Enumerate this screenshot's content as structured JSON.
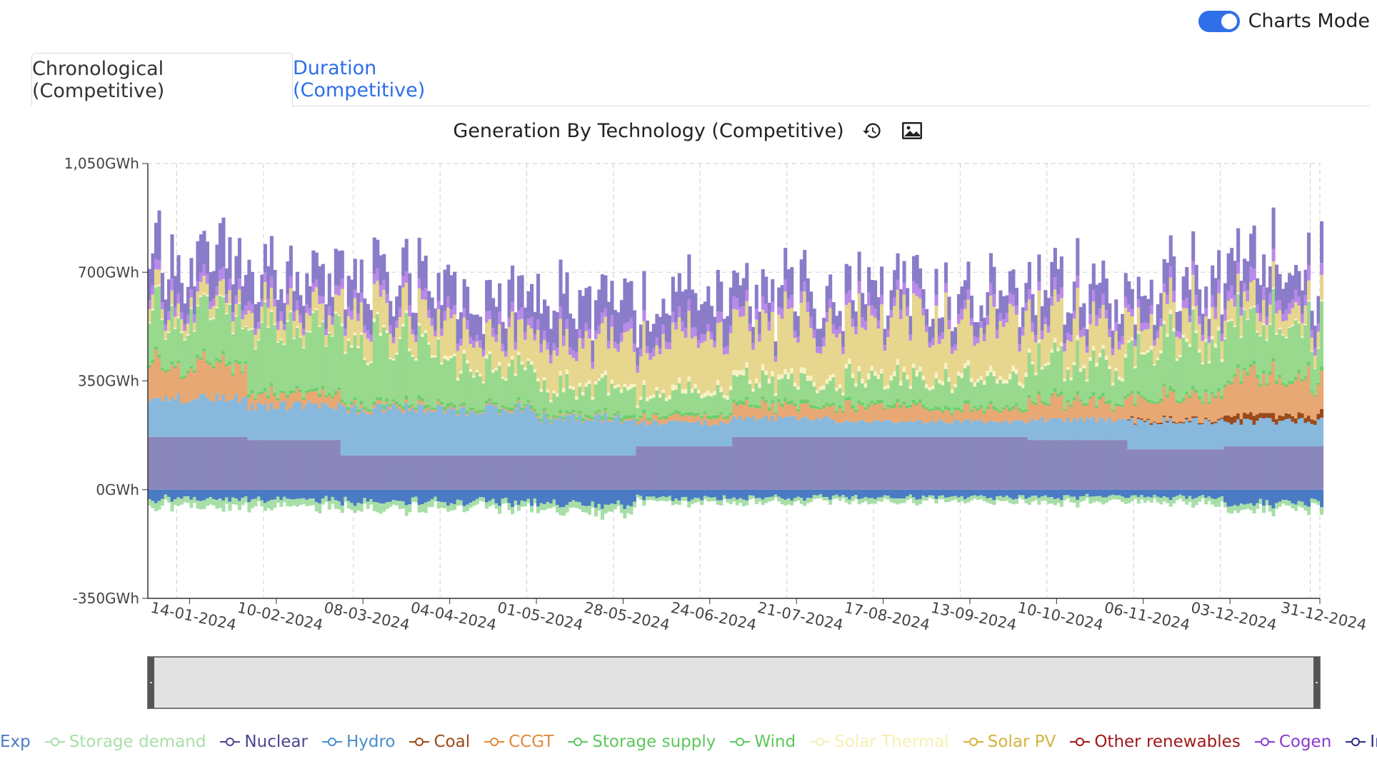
{
  "header": {
    "toggle_label": "Charts Mode",
    "toggle_on": true,
    "accent": "#2f6fe8"
  },
  "tabs": [
    {
      "label": "Chronological (Competitive)",
      "active": true
    },
    {
      "label": "Duration (Competitive)",
      "active": false
    }
  ],
  "icons": {
    "reset": "history-icon",
    "export": "image-icon"
  },
  "chart_data": {
    "type": "area",
    "title": "Generation By Technology (Competitive)",
    "xlabel": "",
    "ylabel": "",
    "y_unit": "GWh",
    "ylim": [
      -350,
      1050
    ],
    "y_ticks": [
      "1,050GWh",
      "700GWh",
      "350GWh",
      "0GWh",
      "-350GWh"
    ],
    "y_tick_values": [
      1050,
      700,
      350,
      0,
      -350
    ],
    "x_range": [
      "2024-01-01",
      "2024-12-31"
    ],
    "x_ticks": [
      "14-01-2024",
      "10-02-2024",
      "08-03-2024",
      "04-04-2024",
      "01-05-2024",
      "28-05-2024",
      "24-06-2024",
      "21-07-2024",
      "17-08-2024",
      "13-09-2024",
      "10-10-2024",
      "06-11-2024",
      "03-12-2024",
      "31-12-2024"
    ],
    "x_tick_values": [
      "2024-01-14",
      "2024-02-10",
      "2024-03-08",
      "2024-04-04",
      "2024-05-01",
      "2024-05-28",
      "2024-06-24",
      "2024-07-21",
      "2024-08-17",
      "2024-09-13",
      "2024-10-10",
      "2024-11-06",
      "2024-12-03",
      "2024-12-31"
    ],
    "grid": true,
    "stacked": true,
    "series_description": "Daily stacked generation; approximate monthly levels (GWh per day) read from the chart",
    "months": [
      "2024-01",
      "2024-02",
      "2024-03",
      "2024-04",
      "2024-05",
      "2024-06",
      "2024-07",
      "2024-08",
      "2024-09",
      "2024-10",
      "2024-11",
      "2024-12"
    ],
    "series": [
      {
        "name": "Exp",
        "color": "#4a7bc4",
        "values": [
          -30,
          -35,
          -40,
          -40,
          -50,
          -30,
          -25,
          -25,
          -25,
          -25,
          -25,
          -45
        ]
      },
      {
        "name": "Storage demand",
        "color": "#a8dfa8",
        "values": [
          -25,
          -25,
          -25,
          -20,
          -25,
          -15,
          -15,
          -15,
          -15,
          -20,
          -20,
          -20
        ]
      },
      {
        "name": "Nuclear",
        "color": "#8a87bb",
        "values": [
          170,
          160,
          110,
          110,
          110,
          140,
          170,
          170,
          170,
          160,
          130,
          140
        ]
      },
      {
        "name": "Hydro",
        "color": "#88b9dd",
        "values": [
          125,
          110,
          150,
          150,
          120,
          75,
          60,
          50,
          50,
          65,
          90,
          80
        ]
      },
      {
        "name": "Coal",
        "color": "#9b4a1a",
        "values": [
          0,
          0,
          0,
          0,
          0,
          0,
          0,
          0,
          0,
          0,
          5,
          20
        ]
      },
      {
        "name": "CCGT",
        "color": "#e8a874",
        "values": [
          110,
          40,
          10,
          5,
          5,
          20,
          40,
          50,
          40,
          60,
          80,
          120
        ]
      },
      {
        "name": "Storage supply",
        "color": "#6ccf6c",
        "values": [
          10,
          10,
          10,
          10,
          10,
          10,
          10,
          10,
          10,
          10,
          10,
          10
        ]
      },
      {
        "name": "Wind",
        "color": "#98d98e",
        "values": [
          160,
          220,
          210,
          130,
          90,
          70,
          70,
          80,
          90,
          120,
          170,
          170
        ]
      },
      {
        "name": "Solar Thermal",
        "color": "#f8f2c4",
        "values": [
          5,
          5,
          8,
          10,
          12,
          15,
          15,
          15,
          15,
          12,
          10,
          5
        ]
      },
      {
        "name": "Solar PV",
        "color": "#e6d68e",
        "values": [
          40,
          55,
          90,
          110,
          140,
          170,
          175,
          180,
          170,
          130,
          90,
          60
        ]
      },
      {
        "name": "Other renewables",
        "color": "#b22222",
        "values": [
          0,
          0,
          0,
          0,
          0,
          0,
          0,
          0,
          0,
          0,
          0,
          0
        ]
      },
      {
        "name": "Cogen",
        "color": "#b98ae8",
        "values": [
          30,
          30,
          30,
          30,
          30,
          30,
          30,
          30,
          30,
          30,
          30,
          35
        ]
      },
      {
        "name": "Imp",
        "color": "#8a7cc9",
        "values": [
          110,
          100,
          90,
          100,
          120,
          110,
          80,
          70,
          70,
          90,
          90,
          100
        ]
      }
    ]
  },
  "legend": [
    {
      "label": "Exp",
      "color": "#4a7bc4"
    },
    {
      "label": "Storage demand",
      "color": "#a8dfa8"
    },
    {
      "label": "Nuclear",
      "color": "#4a4590"
    },
    {
      "label": "Hydro",
      "color": "#4a8dcc"
    },
    {
      "label": "Coal",
      "color": "#9b4a1a"
    },
    {
      "label": "CCGT",
      "color": "#e08a3a"
    },
    {
      "label": "Storage supply",
      "color": "#5cc85c"
    },
    {
      "label": "Wind",
      "color": "#5cc85c"
    },
    {
      "label": "Solar Thermal",
      "color": "#f6efb4"
    },
    {
      "label": "Solar PV",
      "color": "#d4b43c"
    },
    {
      "label": "Other renewables",
      "color": "#a01818"
    },
    {
      "label": "Cogen",
      "color": "#8a3ad0"
    },
    {
      "label": "Imp",
      "color": "#2a2a8a"
    }
  ]
}
